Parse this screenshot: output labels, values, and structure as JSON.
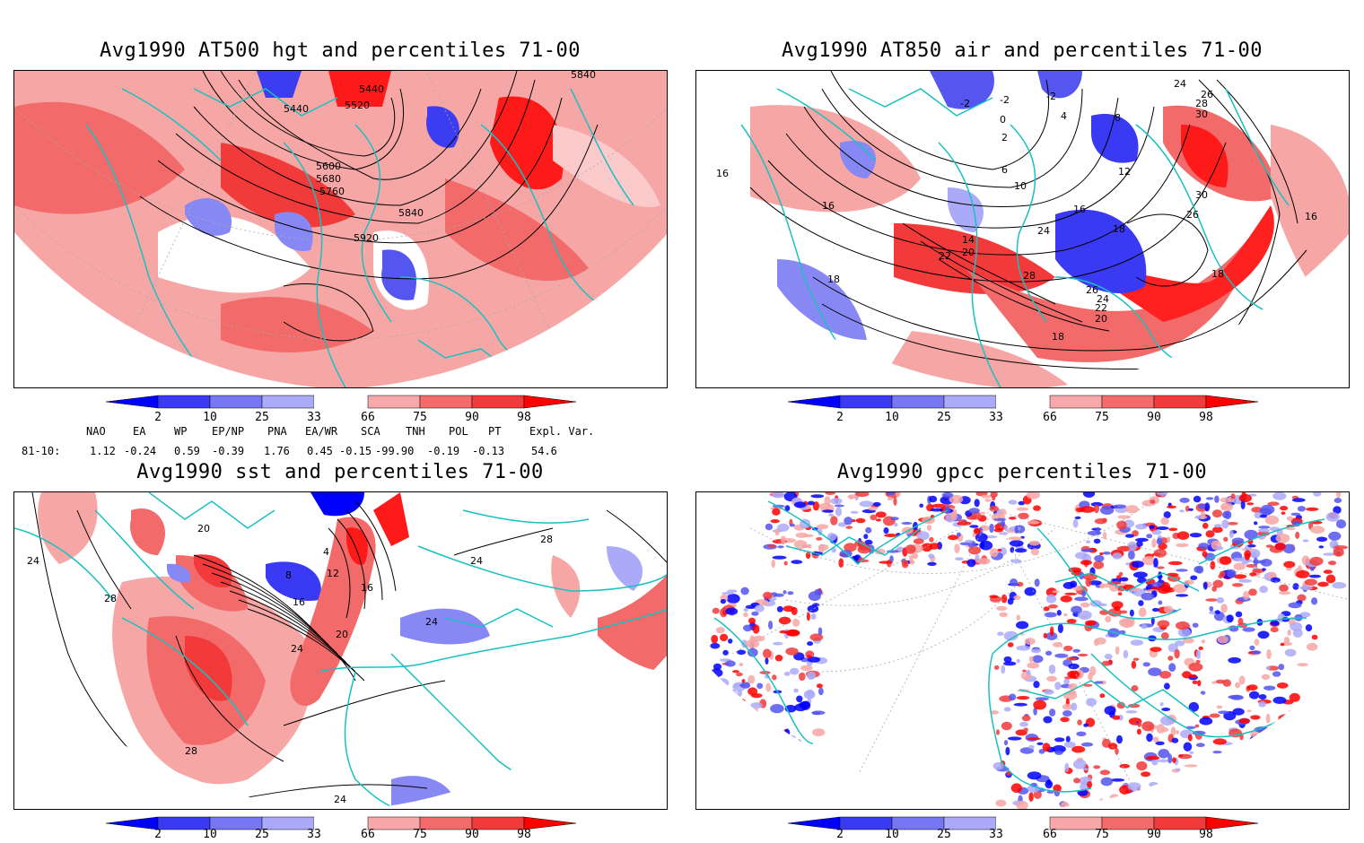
{
  "panels": [
    {
      "id": "p1",
      "title": "Avg1990 AT500 hgt and percentiles 71-00",
      "contour_labels": [
        "5440",
        "5520",
        "5600",
        "5680",
        "5760",
        "5840",
        "5920",
        "5440",
        "5840"
      ]
    },
    {
      "id": "p2",
      "title": "Avg1990 AT850 air and percentiles 71-00",
      "contour_labels": [
        "-2",
        "-2",
        "-2",
        "0",
        "2",
        "4",
        "6",
        "8",
        "10",
        "12",
        "14",
        "16",
        "16",
        "16",
        "16",
        "18",
        "18",
        "18",
        "18",
        "20",
        "22",
        "24",
        "26",
        "28",
        "30",
        "20",
        "22",
        "24",
        "26",
        "28",
        "30",
        "26",
        "24"
      ]
    },
    {
      "id": "p3",
      "title": "Avg1990 sst and percentiles 71-00",
      "contour_labels": [
        "28",
        "28",
        "24",
        "24",
        "20",
        "16",
        "12",
        "8",
        "4",
        "24",
        "24",
        "28",
        "24",
        "20",
        "16"
      ]
    },
    {
      "id": "p4",
      "title": "Avg1990 gpcc percentiles 71-00",
      "contour_labels": []
    }
  ],
  "colorbar": {
    "ticks": [
      "2",
      "10",
      "25",
      "33",
      "66",
      "75",
      "90",
      "98"
    ],
    "colors_low": [
      "#0000ff",
      "#3a3af5",
      "#7777f5",
      "#aaaaf8"
    ],
    "colors_high": [
      "#f8a8a8",
      "#f56a6a",
      "#f23a3a",
      "#ff0000"
    ]
  },
  "teleconnections": {
    "row_label": "81-10:",
    "headers": [
      "NAO",
      "EA",
      "WP",
      "EP/NP",
      "PNA",
      "EA/WR",
      "SCA",
      "TNH",
      "POL",
      "PT",
      "Expl. Var."
    ],
    "values": [
      "1.12",
      "-0.24",
      "0.59",
      "-0.39",
      "1.76",
      "0.45",
      "-0.15",
      "-99.90",
      "-0.19",
      "-0.13",
      "54.6"
    ]
  },
  "colors": {
    "coast": "#19c0c0",
    "contour": "#000000",
    "grid": "#aaaaaa"
  }
}
